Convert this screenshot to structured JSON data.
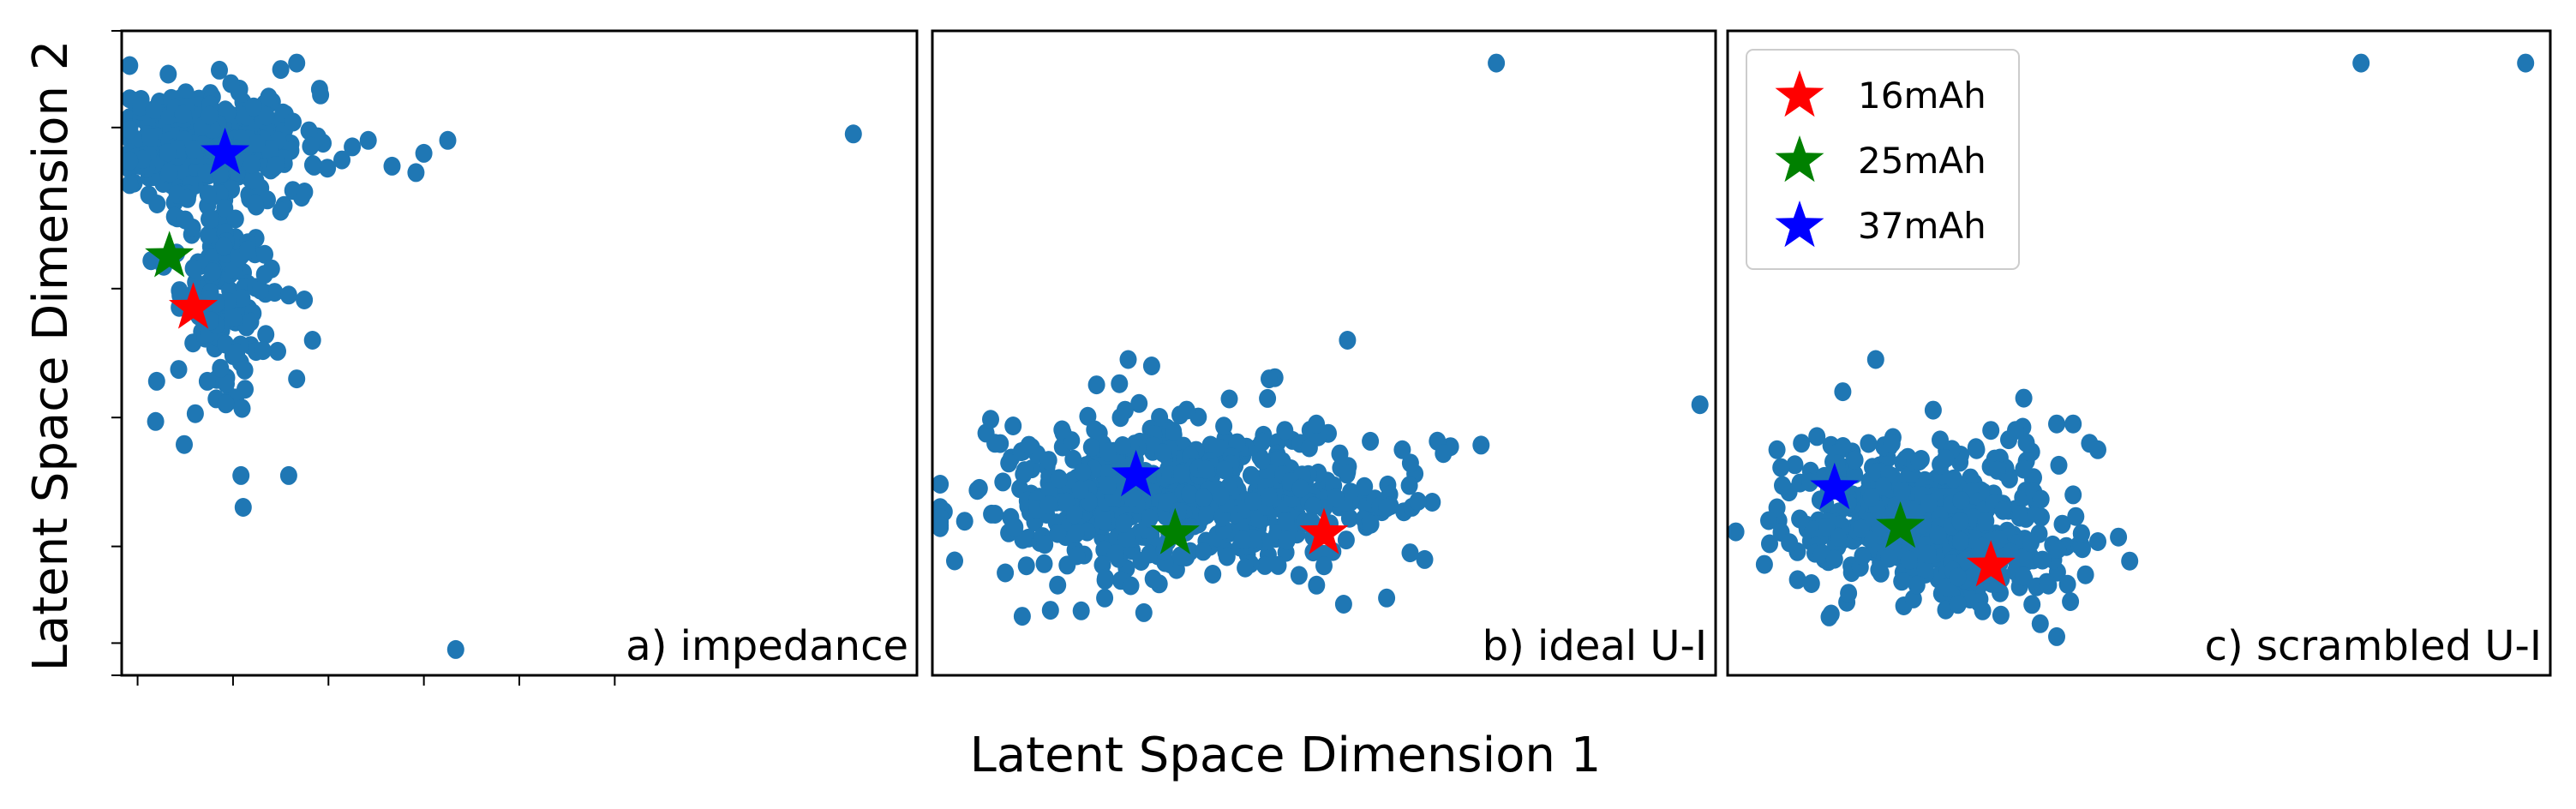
{
  "figure": {
    "xlabel": "Latent Space Dimension 1",
    "ylabel": "Latent Space Dimension 2"
  },
  "colors": {
    "points": "#1f77b4",
    "star_16mAh": "#ff0000",
    "star_25mAh": "#008000",
    "star_37mAh": "#0000ff",
    "frame": "#000000"
  },
  "legend": {
    "placement": "top-left of panel c",
    "entries": [
      {
        "label": "16mAh",
        "color": "#ff0000"
      },
      {
        "label": "25mAh",
        "color": "#008000"
      },
      {
        "label": "37mAh",
        "color": "#0000ff"
      }
    ]
  },
  "chart_data": [
    {
      "type": "scatter",
      "panel_label": "a) impedance",
      "xlim": [
        0,
        100
      ],
      "ylim": [
        0,
        100
      ],
      "x_ticks": [
        2,
        14,
        26,
        38,
        50,
        62
      ],
      "y_ticks": [
        0,
        5,
        20,
        40,
        60,
        85,
        100
      ],
      "clusters": [
        {
          "cx": 11,
          "cy": 83,
          "sx": 6,
          "sy": 4,
          "n": 360,
          "seed": 11
        },
        {
          "cx": 13,
          "cy": 60,
          "sx": 3.5,
          "sy": 11,
          "n": 150,
          "seed": 12
        }
      ],
      "points": [
        [
          92,
          84
        ],
        [
          37,
          78
        ],
        [
          38,
          81
        ],
        [
          34,
          79
        ],
        [
          41,
          83
        ],
        [
          31,
          83
        ],
        [
          29,
          82
        ],
        [
          20,
          94
        ],
        [
          22,
          95
        ],
        [
          23,
          75
        ],
        [
          20,
          72
        ],
        [
          21,
          59
        ],
        [
          24,
          52
        ],
        [
          22,
          46
        ],
        [
          15,
          31
        ],
        [
          21,
          31
        ],
        [
          42,
          4
        ],
        [
          6,
          78
        ]
      ],
      "stars": [
        {
          "label": "16mAh",
          "x": 9,
          "y": 57
        },
        {
          "label": "25mAh",
          "x": 6,
          "y": 65
        },
        {
          "label": "37mAh",
          "x": 13,
          "y": 81
        }
      ]
    },
    {
      "type": "scatter",
      "panel_label": "b) ideal U-I",
      "xlim": [
        0,
        100
      ],
      "ylim": [
        0,
        100
      ],
      "x_ticks": [],
      "y_ticks": [],
      "clusters": [
        {
          "cx": 34,
          "cy": 28,
          "sx": 13,
          "sy": 5.5,
          "n": 520,
          "seed": 21
        },
        {
          "cx": 19,
          "cy": 26,
          "sx": 5,
          "sy": 6,
          "n": 90,
          "seed": 22
        }
      ],
      "points": [
        [
          72,
          95
        ],
        [
          98,
          42
        ],
        [
          53,
          52
        ],
        [
          28,
          48
        ],
        [
          25,
          49
        ],
        [
          8,
          36
        ],
        [
          6,
          29
        ],
        [
          9,
          30
        ],
        [
          60,
          35
        ],
        [
          62,
          27
        ],
        [
          58,
          26
        ],
        [
          61,
          19
        ],
        [
          58,
          12
        ],
        [
          41,
          27
        ],
        [
          47,
          29
        ],
        [
          43,
          46
        ],
        [
          16,
          22
        ],
        [
          19,
          10
        ],
        [
          12,
          17
        ],
        [
          22,
          12
        ],
        [
          16,
          14
        ],
        [
          50,
          17
        ],
        [
          45,
          38
        ],
        [
          8,
          25
        ]
      ],
      "stars": [
        {
          "label": "16mAh",
          "x": 50,
          "y": 22
        },
        {
          "label": "25mAh",
          "x": 31,
          "y": 22
        },
        {
          "label": "37mAh",
          "x": 26,
          "y": 31
        }
      ]
    },
    {
      "type": "scatter",
      "panel_label": "c) scrambled U-I",
      "xlim": [
        0,
        100
      ],
      "ylim": [
        0,
        100
      ],
      "x_ticks": [],
      "y_ticks": [],
      "clusters": [
        {
          "cx": 23,
          "cy": 25,
          "sx": 8,
          "sy": 5.5,
          "n": 420,
          "seed": 31
        },
        {
          "cx": 30,
          "cy": 19,
          "sx": 7,
          "sy": 4,
          "n": 120,
          "seed": 32
        }
      ],
      "points": [
        [
          77,
          95
        ],
        [
          97,
          95
        ],
        [
          18,
          49
        ],
        [
          14,
          44
        ],
        [
          6,
          35
        ],
        [
          6,
          26
        ],
        [
          5,
          24
        ],
        [
          32,
          38
        ],
        [
          35,
          38
        ],
        [
          36,
          43
        ],
        [
          40,
          39
        ],
        [
          42,
          39
        ],
        [
          44,
          36
        ],
        [
          45,
          35
        ],
        [
          43,
          22
        ],
        [
          39,
          14
        ],
        [
          37,
          11
        ],
        [
          40,
          6
        ],
        [
          38,
          8
        ],
        [
          31,
          10
        ],
        [
          28,
          11
        ],
        [
          23,
          14
        ],
        [
          12,
          23
        ],
        [
          13,
          18
        ],
        [
          42,
          28
        ]
      ],
      "stars": [
        {
          "label": "16mAh",
          "x": 32,
          "y": 17
        },
        {
          "label": "25mAh",
          "x": 21,
          "y": 23
        },
        {
          "label": "37mAh",
          "x": 13,
          "y": 29
        }
      ]
    }
  ]
}
